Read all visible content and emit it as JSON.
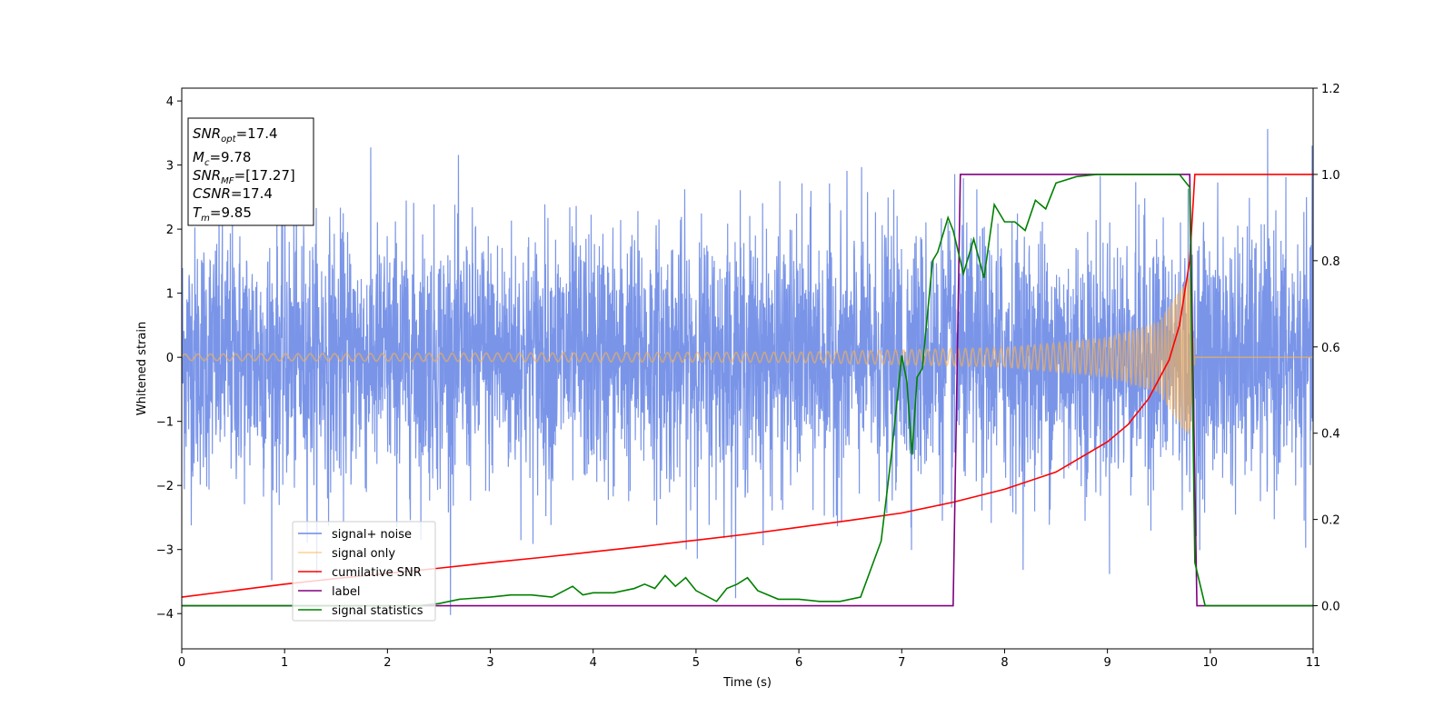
{
  "chart_data": {
    "type": "line",
    "xlabel": "Time (s)",
    "ylabel": "Whitened strain",
    "xlim": [
      0,
      11
    ],
    "ylim_left": [
      -4.55,
      4.2
    ],
    "ylim_right": [
      -0.1,
      1.2
    ],
    "xticks": [
      0,
      1,
      2,
      3,
      4,
      5,
      6,
      7,
      8,
      9,
      10,
      11
    ],
    "yticks_left": [
      -4,
      -3,
      -2,
      -1,
      0,
      1,
      2,
      3,
      4
    ],
    "yticks_right": [
      "0.0",
      "0.2",
      "0.4",
      "0.6",
      "0.8",
      "1.0",
      "1.2"
    ],
    "legend_position": "lower-left",
    "annotation": {
      "lines": [
        {
          "var": "SNR",
          "sub": "opt",
          "value": "=17.4"
        },
        {
          "var": "M",
          "sub": "c",
          "value": "=9.78"
        },
        {
          "var": "SNR",
          "sub": "MF",
          "value": "=[17.27]"
        },
        {
          "var": "CSNR",
          "sub": "",
          "value": "=17.4"
        },
        {
          "var": "T",
          "sub": "m",
          "value": "=9.85"
        }
      ]
    },
    "series": [
      {
        "name": "signal+ noise",
        "axis": "left",
        "color": "#6b8ae6",
        "kind": "noise",
        "noise_std": 1.0,
        "range": [
          -4.15,
          3.8
        ]
      },
      {
        "name": "signal only",
        "axis": "left",
        "color": "#ffb347",
        "kind": "chirp",
        "merger_time": 9.85,
        "amplitude_envelope": [
          [
            0,
            0.05
          ],
          [
            6,
            0.08
          ],
          [
            8,
            0.15
          ],
          [
            9,
            0.3
          ],
          [
            9.5,
            0.55
          ],
          [
            9.8,
            1.3
          ],
          [
            9.85,
            0.0
          ]
        ]
      },
      {
        "name": "cumilative SNR",
        "axis": "right",
        "color": "#ff0000",
        "x": [
          0,
          0.5,
          1,
          1.5,
          2,
          2.5,
          3,
          3.5,
          4,
          4.5,
          5,
          5.5,
          6,
          6.5,
          7,
          7.5,
          8,
          8.5,
          9,
          9.2,
          9.4,
          9.6,
          9.7,
          9.8,
          9.85,
          9.86,
          11
        ],
        "y": [
          0.02,
          0.035,
          0.05,
          0.063,
          0.075,
          0.087,
          0.1,
          0.112,
          0.125,
          0.138,
          0.152,
          0.166,
          0.182,
          0.198,
          0.215,
          0.24,
          0.27,
          0.31,
          0.38,
          0.42,
          0.48,
          0.57,
          0.65,
          0.8,
          1.0,
          1.0,
          1.0
        ]
      },
      {
        "name": "label",
        "axis": "right",
        "color": "#800080",
        "x": [
          0,
          7.5,
          7.57,
          9.8,
          9.87,
          11
        ],
        "y": [
          0.0,
          0.0,
          1.0,
          1.0,
          0.0,
          0.0
        ]
      },
      {
        "name": "signal statistics",
        "axis": "right",
        "color": "#008000",
        "x": [
          0,
          0.5,
          1,
          1.5,
          2,
          2.3,
          2.5,
          2.7,
          3.0,
          3.2,
          3.4,
          3.6,
          3.8,
          3.9,
          4.0,
          4.2,
          4.4,
          4.5,
          4.6,
          4.7,
          4.8,
          4.9,
          5.0,
          5.2,
          5.3,
          5.4,
          5.5,
          5.6,
          5.8,
          6.0,
          6.2,
          6.4,
          6.6,
          6.8,
          6.9,
          7.0,
          7.05,
          7.1,
          7.15,
          7.2,
          7.3,
          7.35,
          7.45,
          7.5,
          7.6,
          7.7,
          7.8,
          7.9,
          8.0,
          8.1,
          8.2,
          8.3,
          8.4,
          8.5,
          8.7,
          8.9,
          9.1,
          9.3,
          9.5,
          9.7,
          9.8,
          9.85,
          9.95,
          10.5,
          11
        ],
        "y": [
          0.0,
          0.0,
          0.0,
          0.0,
          0.0,
          0.0,
          0.005,
          0.015,
          0.02,
          0.025,
          0.025,
          0.02,
          0.045,
          0.025,
          0.03,
          0.03,
          0.04,
          0.05,
          0.04,
          0.07,
          0.045,
          0.065,
          0.035,
          0.01,
          0.04,
          0.05,
          0.065,
          0.035,
          0.015,
          0.015,
          0.01,
          0.01,
          0.02,
          0.15,
          0.35,
          0.58,
          0.52,
          0.35,
          0.53,
          0.55,
          0.8,
          0.82,
          0.9,
          0.87,
          0.77,
          0.85,
          0.76,
          0.93,
          0.89,
          0.89,
          0.87,
          0.94,
          0.92,
          0.98,
          0.995,
          1.0,
          1.0,
          1.0,
          1.0,
          1.0,
          0.97,
          0.1,
          0.0,
          0.0,
          0.0
        ]
      }
    ]
  }
}
